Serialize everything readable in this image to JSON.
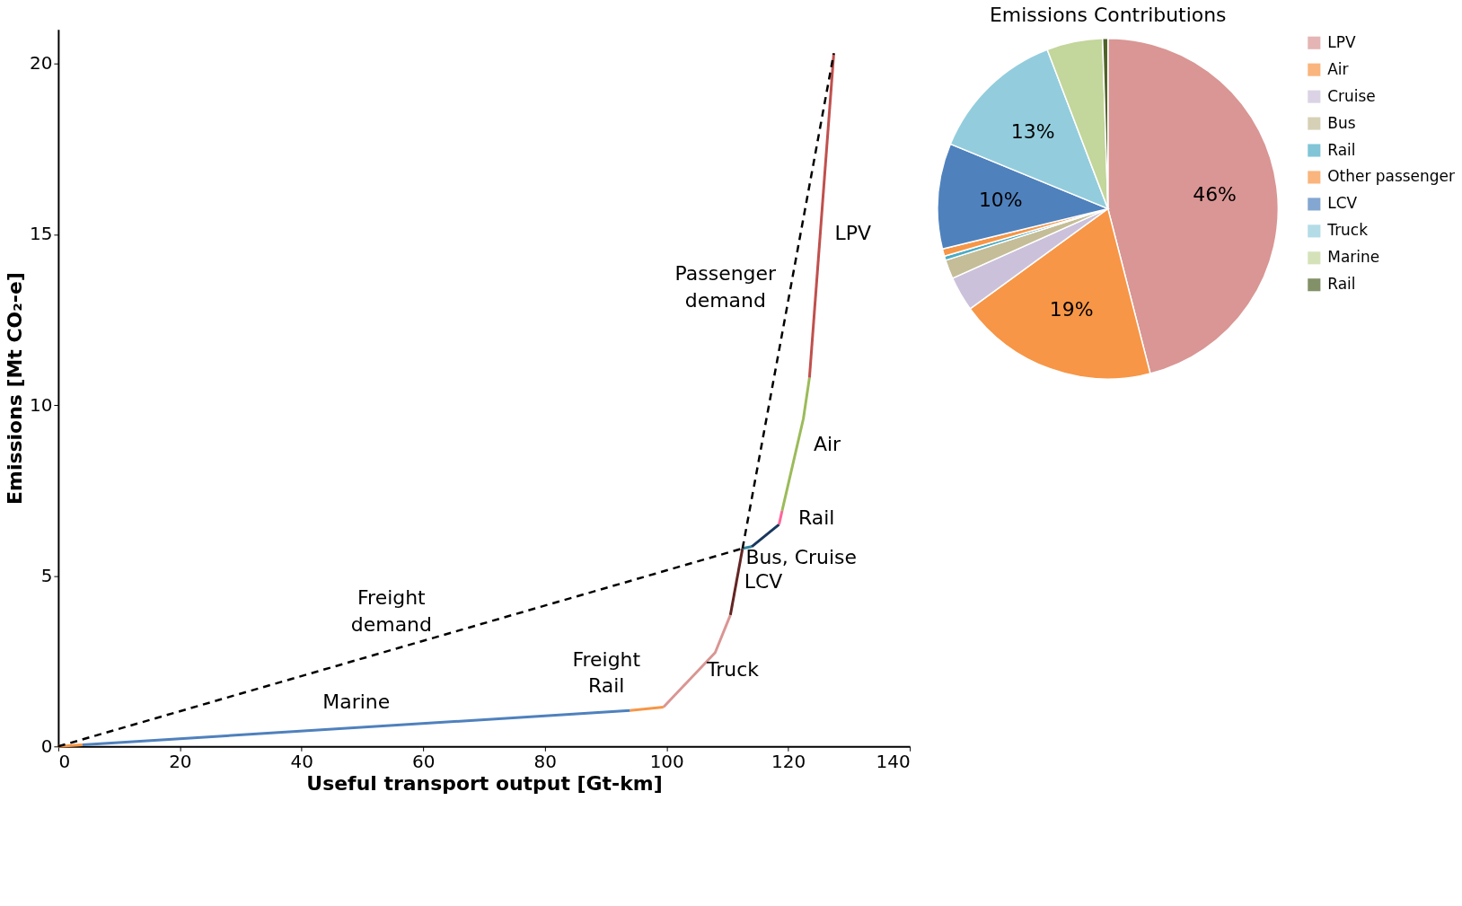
{
  "chart_data": [
    {
      "type": "line",
      "xlabel": "Useful transport output [Gt-km]",
      "ylabel": "Emissions [Mt CO₂-e]",
      "xlim": [
        0,
        140
      ],
      "ylim": [
        0,
        21
      ],
      "xticks": [
        0,
        20,
        40,
        60,
        80,
        100,
        120,
        140
      ],
      "yticks": [
        0,
        5,
        10,
        15,
        20
      ],
      "grid": false,
      "legend": false,
      "line_style": "solid",
      "series": [
        {
          "color": "#f79646",
          "x": [
            0,
            4
          ],
          "values": [
            0,
            0.05
          ]
        },
        {
          "name": "Marine",
          "color": "#4f81bd",
          "x": [
            4,
            94
          ],
          "values": [
            0.05,
            1.05
          ]
        },
        {
          "name": "Freight Rail",
          "color": "#f79646",
          "x": [
            94,
            99.5
          ],
          "values": [
            1.05,
            1.15
          ]
        },
        {
          "name": "Truck",
          "color": "#d99694",
          "x": [
            99.5,
            108,
            110.5
          ],
          "values": [
            1.15,
            2.75,
            3.85
          ]
        },
        {
          "name": "LCV",
          "color": "#632523",
          "x": [
            110.5,
            112.5
          ],
          "values": [
            3.85,
            5.8
          ]
        },
        {
          "color": "#31859c",
          "x": [
            112.5,
            114
          ],
          "values": [
            5.8,
            5.85
          ]
        },
        {
          "name": "Bus, Cruise",
          "color": "#17375e",
          "x": [
            114,
            118.5
          ],
          "values": [
            5.85,
            6.5
          ]
        },
        {
          "name": "Rail",
          "color": "#ff6699",
          "x": [
            118.5,
            119
          ],
          "values": [
            6.5,
            6.9
          ]
        },
        {
          "name": "Air",
          "color": "#9bbb59",
          "x": [
            119,
            122.5,
            123.5
          ],
          "values": [
            6.9,
            9.6,
            10.8
          ]
        },
        {
          "name": "LPV",
          "color": "#c0504d",
          "x": [
            123.5,
            127.5
          ],
          "values": [
            10.8,
            20.3
          ]
        },
        {
          "name": "Freight demand",
          "color": "#000000",
          "line_style": "dashed",
          "x": [
            0,
            112.5
          ],
          "values": [
            0,
            5.8
          ]
        },
        {
          "name": "Passenger demand",
          "color": "#000000",
          "line_style": "dashed",
          "x": [
            112.5,
            127.5
          ],
          "values": [
            5.8,
            20.3
          ]
        }
      ]
    },
    {
      "type": "pie",
      "title": "Emissions Contributions",
      "legend": "right",
      "categories": [
        "LPV",
        "Air",
        "Cruise",
        "Bus",
        "Rail",
        "Other passenger",
        "LCV",
        "Truck",
        "Marine",
        "Rail"
      ],
      "values": [
        46,
        19,
        3.3,
        1.8,
        0.4,
        0.7,
        10,
        13,
        5.3,
        0.5
      ],
      "colors": [
        "#d99694",
        "#f79646",
        "#ccc1da",
        "#c4bd97",
        "#4bacc6",
        "#f79646",
        "#4f81bd",
        "#93cddd",
        "#c3d69b",
        "#4f6228"
      ],
      "value_labels": [
        "46%",
        "19%",
        null,
        null,
        null,
        null,
        "10%",
        "13%",
        null,
        null
      ]
    }
  ]
}
